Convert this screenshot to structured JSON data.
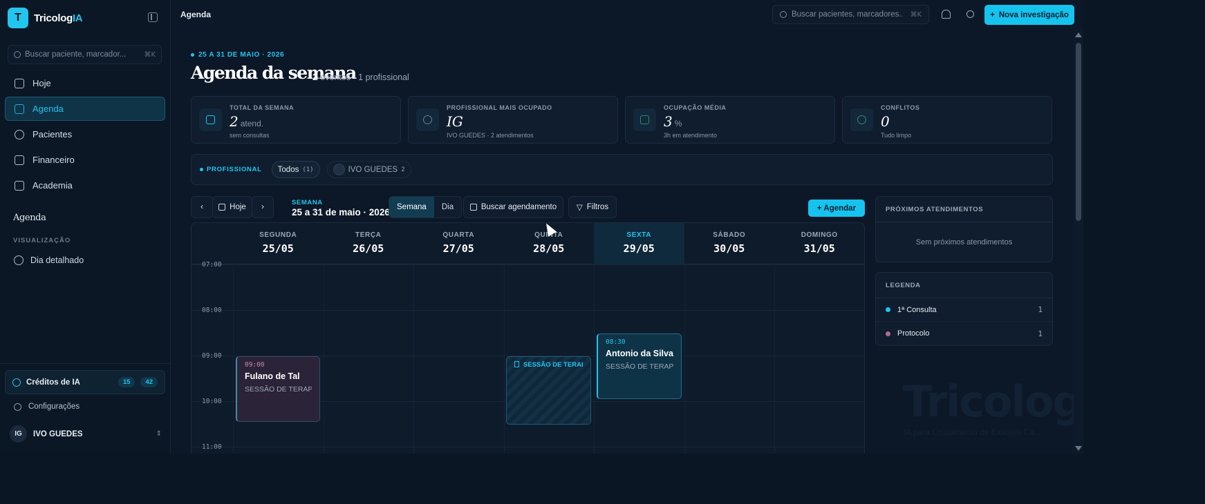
{
  "brand": {
    "initial": "T",
    "name": "Tricolog",
    "name_accent": "IA"
  },
  "sidebar": {
    "search_placeholder": "Buscar paciente, marcador...",
    "search_shortcut": "⌘K",
    "items": [
      {
        "label": "Hoje",
        "icon": "grid-icon"
      },
      {
        "label": "Agenda",
        "icon": "calendar-icon",
        "active": true
      },
      {
        "label": "Pacientes",
        "icon": "users-icon"
      },
      {
        "label": "Financeiro",
        "icon": "wallet-icon"
      },
      {
        "label": "Academia",
        "icon": "graduation-cap-icon"
      }
    ],
    "section_title": "Agenda",
    "section_sub": "VISUALIZAÇÃO",
    "sub_item": "Dia detalhado",
    "credits": {
      "label": "Créditos de IA",
      "count_a": "15",
      "count_b": "42"
    },
    "settings": "Configurações",
    "user": {
      "initials": "IG",
      "name": "IVO GUEDES"
    }
  },
  "topbar": {
    "title": "Agenda",
    "search_placeholder": "Buscar pacientes, marcadores...",
    "search_shortcut": "⌘K",
    "new_button": "Nova investigação"
  },
  "header": {
    "eyebrow": "25 A 31 DE MAIO · 2026",
    "title": "Agenda da semana",
    "events_count": "2",
    "events_text": "eventos · 1 profissional"
  },
  "stats": [
    {
      "label": "TOTAL DA SEMANA",
      "value": "2",
      "unit": "atend.",
      "sub": "sem consultas",
      "icon": "calendar-check-icon"
    },
    {
      "label": "PROFISSIONAL MAIS OCUPADO",
      "value": "IG",
      "unit": "",
      "sub": "IVO GUEDES · 2 atendimentos",
      "icon": "clock-icon"
    },
    {
      "label": "OCUPAÇÃO MÉDIA",
      "value": "3",
      "unit": "%",
      "sub": "3h em atendimento",
      "icon": "trend-up-icon"
    },
    {
      "label": "CONFLITOS",
      "value": "0",
      "unit": "",
      "sub": "Tudo limpo",
      "icon": "info-icon"
    }
  ],
  "filters": {
    "label": "PROFISSIONAL",
    "all_label": "Todos",
    "all_count": "(1)",
    "pro_label": "IVO GUEDES",
    "pro_count": "2"
  },
  "toolbar": {
    "today": "Hoje",
    "week_label": "SEMANA",
    "week_range": "25 a 31 de maio · 2026",
    "view_week": "Semana",
    "view_day": "Dia",
    "search_btn": "Buscar agendamento",
    "filters_btn": "Filtros",
    "schedule_btn": "Agendar"
  },
  "days": [
    {
      "name": "SEGUNDA",
      "date": "25/05"
    },
    {
      "name": "TERÇA",
      "date": "26/05"
    },
    {
      "name": "QUARTA",
      "date": "27/05"
    },
    {
      "name": "QUINTA",
      "date": "28/05"
    },
    {
      "name": "SEXTA",
      "date": "29/05",
      "today": true
    },
    {
      "name": "SÁBADO",
      "date": "30/05"
    },
    {
      "name": "DOMINGO",
      "date": "31/05"
    }
  ],
  "hours": [
    "07:00",
    "08:00",
    "09:00",
    "10:00",
    "11:00"
  ],
  "events": [
    {
      "time": "09:00",
      "name": "Fulano de Tal",
      "type": "SESSÃO DE TERAPI..."
    },
    {
      "type": "SESSÃO DE TERAP..."
    },
    {
      "time": "08:30",
      "name": "Antonio da Silva",
      "type": "SESSÃO DE TERAPI..."
    }
  ],
  "upcoming": {
    "title": "PRÓXIMOS ATENDIMENTOS",
    "empty": "Sem próximos atendimentos"
  },
  "legend": {
    "title": "LEGENDA",
    "items": [
      {
        "label": "1ª Consulta",
        "count": "1",
        "color": "#22c5ee"
      },
      {
        "label": "Protocolo",
        "count": "1",
        "color": "#b46a92"
      }
    ]
  },
  "watermark": {
    "text": "TricologIA",
    "sub": "IA para Cruzamento de Exames Ca..."
  }
}
